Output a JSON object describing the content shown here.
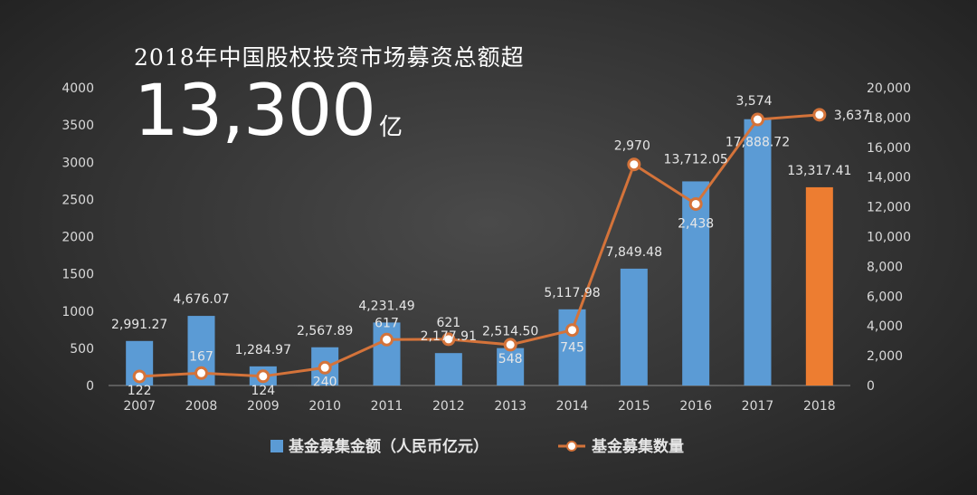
{
  "headline": "2018年中国股权投资市场募资总额超",
  "headline_value": "13,300",
  "headline_unit": "亿",
  "colors": {
    "bar": "#5b9bd5",
    "bar_highlight": "#ed7d31",
    "line": "#d4733a",
    "marker_fill": "#ffffff",
    "text": "#d9d9d9",
    "label": "#e6e6e6"
  },
  "chart_data": {
    "type": "bar",
    "categories": [
      "2007",
      "2008",
      "2009",
      "2010",
      "2011",
      "2012",
      "2013",
      "2014",
      "2015",
      "2016",
      "2017",
      "2018"
    ],
    "series": [
      {
        "name": "基金募集金额（人民币亿元）",
        "type": "bar",
        "axis": "right",
        "values": [
          2991.27,
          4676.07,
          1284.97,
          2567.89,
          4231.49,
          2177.91,
          2514.5,
          5117.98,
          7849.48,
          13712.05,
          17888.72,
          13317.41
        ],
        "labels": [
          "2,991.27",
          "4,676.07",
          "1,284.97",
          "2,567.89",
          "4,231.49",
          "2,177.91",
          "2,514.50",
          "5,117.98",
          "7,849.48",
          "13,712.05",
          "17,888.72",
          "13,317.41"
        ]
      },
      {
        "name": "基金募集数量",
        "type": "line",
        "axis": "left",
        "values": [
          122,
          167,
          124,
          240,
          617,
          621,
          548,
          745,
          2970,
          2438,
          3574,
          3637
        ],
        "labels": [
          "122",
          "167",
          "124",
          "240",
          "617",
          "621",
          "548",
          "745",
          "2,970",
          "2,438",
          "3,574",
          "3,637"
        ]
      }
    ],
    "left_axis": {
      "min": 0,
      "max": 4000,
      "ticks": [
        "0",
        "500",
        "1000",
        "1500",
        "2000",
        "2500",
        "3000",
        "3500",
        "4000"
      ]
    },
    "right_axis": {
      "min": 0,
      "max": 20000,
      "ticks": [
        "0",
        "2,000",
        "4,000",
        "6,000",
        "8,000",
        "10,000",
        "12,000",
        "14,000",
        "16,000",
        "18,000",
        "20,000"
      ]
    },
    "legend_position": "bottom-center",
    "grid": false
  }
}
